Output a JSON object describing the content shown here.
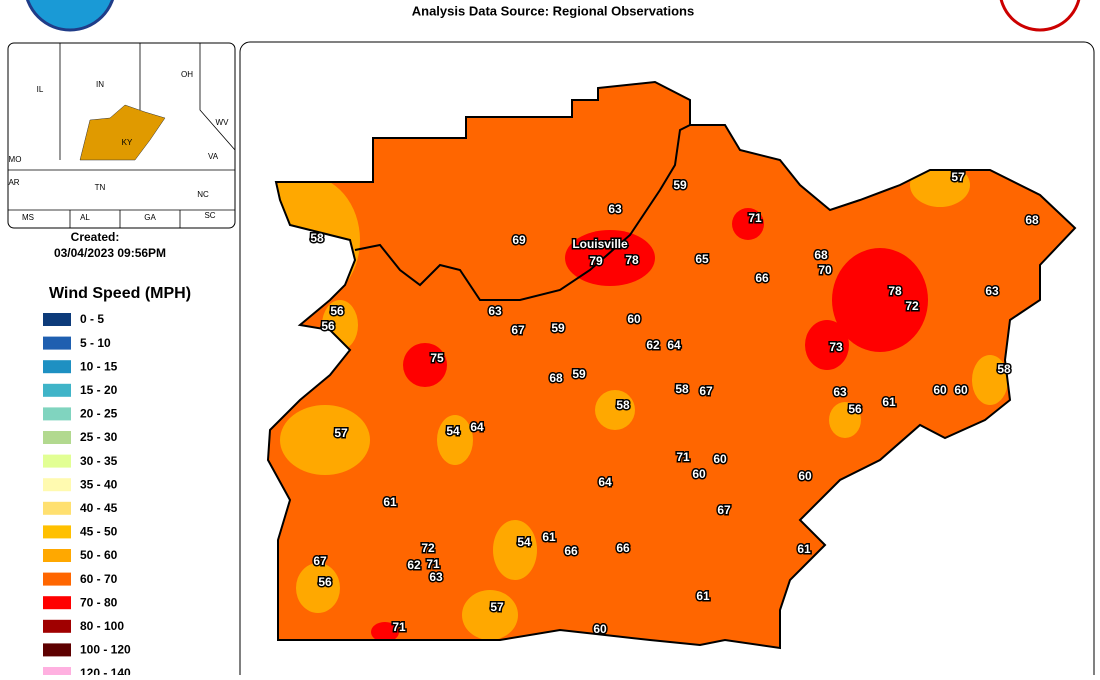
{
  "header": {
    "subtitle": "Analysis Data Source: Regional Observations"
  },
  "inset": {
    "state_labels": [
      "IL",
      "IN",
      "OH",
      "KY",
      "WV",
      "VA",
      "TN",
      "NC",
      "MO",
      "AR",
      "MS",
      "AL",
      "GA",
      "SC"
    ]
  },
  "created": {
    "label": "Created:",
    "timestamp": "03/04/2023 09:56PM"
  },
  "legend": {
    "title": "Wind Speed (MPH)",
    "items": [
      {
        "label": "0 - 5",
        "color": "#0d3b7a"
      },
      {
        "label": "5 - 10",
        "color": "#1f5fb0"
      },
      {
        "label": "10 - 15",
        "color": "#1e90c2"
      },
      {
        "label": "15 - 20",
        "color": "#3fb4c8"
      },
      {
        "label": "20 - 25",
        "color": "#80d4bf"
      },
      {
        "label": "25 - 30",
        "color": "#b2d98f"
      },
      {
        "label": "30 - 35",
        "color": "#e2ff94"
      },
      {
        "label": "35 - 40",
        "color": "#fffab0"
      },
      {
        "label": "40 - 45",
        "color": "#ffe070"
      },
      {
        "label": "45 - 50",
        "color": "#ffc000"
      },
      {
        "label": "50 - 60",
        "color": "#ffa800"
      },
      {
        "label": "60 - 70",
        "color": "#ff6600"
      },
      {
        "label": "70 - 80",
        "color": "#ff0000"
      },
      {
        "label": "80 - 100",
        "color": "#a00000"
      },
      {
        "label": "100 - 120",
        "color": "#5e0000"
      },
      {
        "label": "120 - 140",
        "color": "#ffb0e0"
      }
    ]
  },
  "map": {
    "city_label": "Louisville",
    "stations": [
      58,
      69,
      63,
      59,
      71,
      57,
      68,
      79,
      78,
      65,
      66,
      68,
      70,
      78,
      72,
      63,
      56,
      56,
      63,
      67,
      59,
      60,
      62,
      64,
      73,
      75,
      68,
      59,
      58,
      67,
      63,
      56,
      61,
      60,
      60,
      58,
      58,
      57,
      54,
      64,
      71,
      60,
      60,
      64,
      60,
      61,
      67,
      54,
      61,
      66,
      66,
      61,
      72,
      62,
      71,
      63,
      67,
      56,
      57,
      61,
      71,
      60
    ]
  }
}
